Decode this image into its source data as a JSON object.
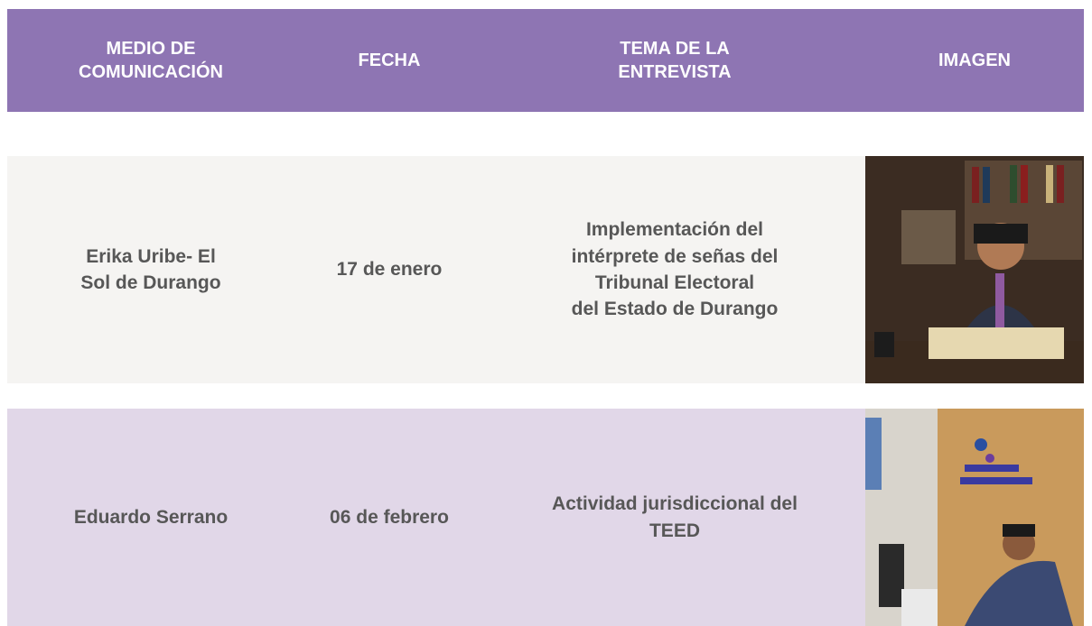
{
  "table": {
    "headers": [
      "MEDIO DE\nCOMUNICACIÓN",
      "FECHA",
      "TEMA DE LA\nENTREVISTA",
      "IMAGEN"
    ],
    "rows": [
      [
        "Erika Uribe- El\nSol de Durango",
        "17 de enero",
        "Implementación del\nintérprete de señas del\nTribunal Electoral\ndel Estado de Durango"
      ],
      [
        "Eduardo Serrano",
        "06 de febrero",
        "Actividad jurisdiccional del\nTEED"
      ]
    ]
  }
}
